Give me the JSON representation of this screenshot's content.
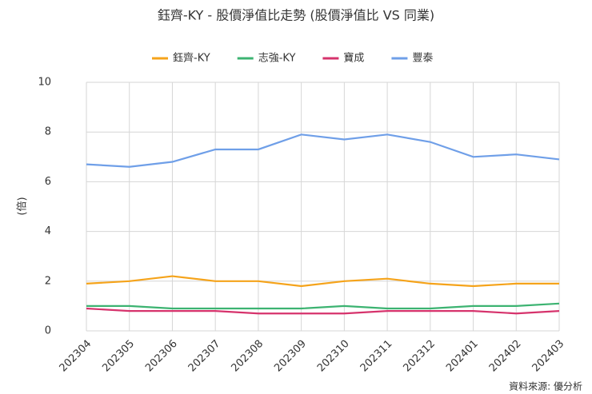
{
  "chart_data": {
    "type": "line",
    "title": "鈺齊-KY - 股價淨值比走勢 (股價淨值比 VS 同業)",
    "y_label": "(倍)",
    "source": "資料來源: 優分析",
    "categories": [
      "202304",
      "202305",
      "202306",
      "202307",
      "202308",
      "202309",
      "202310",
      "202311",
      "202312",
      "202401",
      "202402",
      "202403"
    ],
    "series": [
      {
        "name": "鈺齊-KY",
        "color": "#f5a31a",
        "values": [
          1.9,
          2.0,
          2.2,
          2.0,
          2.0,
          1.8,
          2.0,
          2.1,
          1.9,
          1.8,
          1.9,
          1.9
        ]
      },
      {
        "name": "志強-KY",
        "color": "#3cb371",
        "values": [
          1.0,
          1.0,
          0.9,
          0.9,
          0.9,
          0.9,
          1.0,
          0.9,
          0.9,
          1.0,
          1.0,
          1.1
        ]
      },
      {
        "name": "寶成",
        "color": "#d6336c",
        "values": [
          0.9,
          0.8,
          0.8,
          0.8,
          0.7,
          0.7,
          0.7,
          0.8,
          0.8,
          0.8,
          0.7,
          0.8
        ]
      },
      {
        "name": "豐泰",
        "color": "#6f9fe8",
        "values": [
          6.7,
          6.6,
          6.8,
          7.3,
          7.3,
          7.9,
          7.7,
          7.9,
          7.6,
          7.0,
          7.1,
          6.9
        ]
      }
    ],
    "ylim": [
      0,
      10
    ],
    "yticks": [
      0,
      2,
      4,
      6,
      8,
      10
    ],
    "grid": true,
    "legend": "top"
  }
}
